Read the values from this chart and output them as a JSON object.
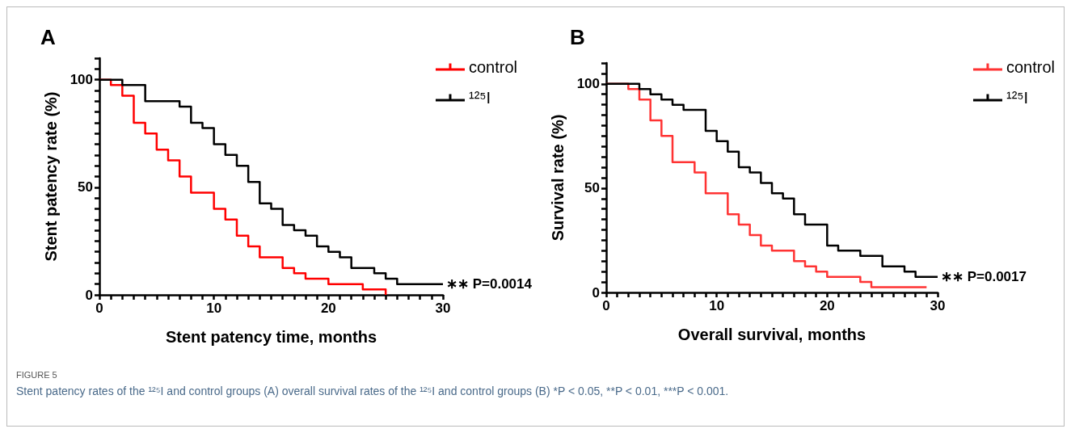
{
  "chart_data": [
    {
      "type": "step",
      "title": "A",
      "xlabel": "Stent patency time, months",
      "ylabel": "Stent patency rate (%)",
      "xlim": [
        0,
        30
      ],
      "ylim": [
        0,
        110
      ],
      "xticks": [
        0,
        {
          "value": 1,
          "label": null
        },
        {
          "value": 2,
          "label": null
        },
        {
          "value": 3,
          "label": null
        },
        {
          "value": 4,
          "label": null
        },
        {
          "value": 5,
          "label": null
        },
        {
          "value": 6,
          "label": null
        },
        {
          "value": 7,
          "label": null
        },
        {
          "value": 8,
          "label": null
        },
        {
          "value": 9,
          "label": null
        },
        10,
        {
          "value": 11,
          "label": null
        },
        {
          "value": 12,
          "label": null
        },
        {
          "value": 13,
          "label": null
        },
        {
          "value": 14,
          "label": null
        },
        {
          "value": 15,
          "label": null
        },
        {
          "value": 16,
          "label": null
        },
        {
          "value": 17,
          "label": null
        },
        {
          "value": 18,
          "label": null
        },
        {
          "value": 19,
          "label": null
        },
        20,
        {
          "value": 21,
          "label": null
        },
        {
          "value": 22,
          "label": null
        },
        {
          "value": 23,
          "label": null
        },
        {
          "value": 24,
          "label": null
        },
        {
          "value": 25,
          "label": null
        },
        {
          "value": 26,
          "label": null
        },
        {
          "value": 27,
          "label": null
        },
        {
          "value": 28,
          "label": null
        },
        {
          "value": 29,
          "label": null
        },
        30
      ],
      "yticks": [
        0,
        {
          "value": 5,
          "label": null
        },
        {
          "value": 10,
          "label": null
        },
        {
          "value": 15,
          "label": null
        },
        {
          "value": 20,
          "label": null
        },
        {
          "value": 25,
          "label": null
        },
        {
          "value": 30,
          "label": null
        },
        {
          "value": 35,
          "label": null
        },
        {
          "value": 40,
          "label": null
        },
        {
          "value": 45,
          "label": null
        },
        50,
        {
          "value": 55,
          "label": null
        },
        {
          "value": 60,
          "label": null
        },
        {
          "value": 65,
          "label": null
        },
        {
          "value": 70,
          "label": null
        },
        {
          "value": 75,
          "label": null
        },
        {
          "value": 80,
          "label": null
        },
        {
          "value": 85,
          "label": null
        },
        {
          "value": 90,
          "label": null
        },
        {
          "value": 95,
          "label": null
        },
        100,
        {
          "value": 105,
          "label": null
        },
        {
          "value": 110,
          "label": null
        }
      ],
      "grid": false,
      "legend": "top right",
      "marker": "none",
      "line_style": "solid",
      "series": [
        {
          "name": "control",
          "color": "#ff0000",
          "x": [
            0,
            1,
            2,
            3,
            4,
            5,
            6,
            7,
            8,
            10,
            11,
            12,
            13,
            14,
            16,
            17,
            18,
            20,
            23,
            25
          ],
          "values": [
            100,
            97.5,
            92.5,
            80,
            75,
            67.5,
            62.5,
            55,
            47.5,
            40,
            35,
            27.5,
            22.5,
            17.5,
            12.5,
            10,
            7.5,
            5,
            2.5,
            0
          ]
        },
        {
          "name": "¹²⁵I",
          "color": "#000000",
          "x": [
            0,
            2,
            4,
            7,
            8,
            9,
            10,
            11,
            12,
            13,
            14,
            15,
            16,
            17,
            18,
            19,
            20,
            21,
            22,
            24,
            25,
            26,
            30
          ],
          "values": [
            100,
            97.5,
            90,
            87.5,
            80,
            77.5,
            70,
            65,
            60,
            52.5,
            42.5,
            40,
            32.5,
            30,
            27.5,
            22.5,
            20,
            17.5,
            12.5,
            10,
            7.5,
            5,
            5
          ]
        }
      ],
      "annotations": [
        {
          "text": "∗∗ P=0.0014",
          "x": 30,
          "y": 5
        },
        "FIGURE 5",
        "Stent patency rates of the ¹²⁵I and control groups (A) overall survival rates of the ¹²⁵I and control groups (B) *P < 0.05, **P < 0.01, ***P < 0.001."
      ]
    },
    {
      "type": "step",
      "title": "B",
      "xlabel": "Overall survival, months",
      "ylabel": "Survival rate (%)",
      "xlim": [
        0,
        30
      ],
      "ylim": [
        0,
        110
      ],
      "xticks": [
        0,
        {
          "value": 1,
          "label": null
        },
        {
          "value": 2,
          "label": null
        },
        {
          "value": 3,
          "label": null
        },
        {
          "value": 4,
          "label": null
        },
        {
          "value": 5,
          "label": null
        },
        {
          "value": 6,
          "label": null
        },
        {
          "value": 7,
          "label": null
        },
        {
          "value": 8,
          "label": null
        },
        {
          "value": 9,
          "label": null
        },
        10,
        {
          "value": 11,
          "label": null
        },
        {
          "value": 12,
          "label": null
        },
        {
          "value": 13,
          "label": null
        },
        {
          "value": 14,
          "label": null
        },
        {
          "value": 15,
          "label": null
        },
        {
          "value": 16,
          "label": null
        },
        {
          "value": 17,
          "label": null
        },
        {
          "value": 18,
          "label": null
        },
        {
          "value": 19,
          "label": null
        },
        20,
        {
          "value": 21,
          "label": null
        },
        {
          "value": 22,
          "label": null
        },
        {
          "value": 23,
          "label": null
        },
        {
          "value": 24,
          "label": null
        },
        {
          "value": 25,
          "label": null
        },
        {
          "value": 26,
          "label": null
        },
        {
          "value": 27,
          "label": null
        },
        {
          "value": 28,
          "label": null
        },
        {
          "value": 29,
          "label": null
        },
        30
      ],
      "yticks": [
        0,
        {
          "value": 5,
          "label": null
        },
        {
          "value": 10,
          "label": null
        },
        {
          "value": 15,
          "label": null
        },
        {
          "value": 20,
          "label": null
        },
        {
          "value": 25,
          "label": null
        },
        {
          "value": 30,
          "label": null
        },
        {
          "value": 35,
          "label": null
        },
        {
          "value": 40,
          "label": null
        },
        {
          "value": 45,
          "label": null
        },
        50,
        {
          "value": 55,
          "label": null
        },
        {
          "value": 60,
          "label": null
        },
        {
          "value": 65,
          "label": null
        },
        {
          "value": 70,
          "label": null
        },
        {
          "value": 75,
          "label": null
        },
        {
          "value": 80,
          "label": null
        },
        {
          "value": 85,
          "label": null
        },
        {
          "value": 90,
          "label": null
        },
        {
          "value": 95,
          "label": null
        },
        100,
        {
          "value": 105,
          "label": null
        },
        {
          "value": 110,
          "label": null
        }
      ],
      "grid": false,
      "legend": "top right",
      "marker": "none",
      "line_style": "solid",
      "series": [
        {
          "name": "control",
          "color": "#ff3333",
          "x": [
            0,
            2,
            3,
            4,
            5,
            6,
            8,
            9,
            11,
            12,
            13,
            14,
            15,
            17,
            18,
            19,
            20,
            23,
            24,
            29
          ],
          "values": [
            100,
            97.5,
            92.5,
            82.5,
            75,
            62.5,
            57.5,
            47.5,
            37.5,
            32.5,
            27.5,
            22.5,
            20,
            15,
            12.5,
            10,
            7.5,
            5,
            2.5,
            2.5
          ]
        },
        {
          "name": "¹²⁵I",
          "color": "#000000",
          "x": [
            0,
            3,
            4,
            5,
            6,
            7,
            9,
            10,
            11,
            12,
            13,
            14,
            15,
            16,
            17,
            18,
            20,
            21,
            23,
            25,
            27,
            28,
            30
          ],
          "values": [
            100,
            97.5,
            95,
            92.5,
            90,
            87.5,
            77.5,
            72.5,
            67.5,
            60,
            57.5,
            52.5,
            47.5,
            45,
            37.5,
            32.5,
            22.5,
            20,
            17.5,
            12.5,
            10,
            7.5,
            7.5
          ]
        }
      ],
      "annotations": [
        {
          "text": "∗∗ P=0.0017",
          "x": 30,
          "y": 7.5
        }
      ]
    }
  ]
}
